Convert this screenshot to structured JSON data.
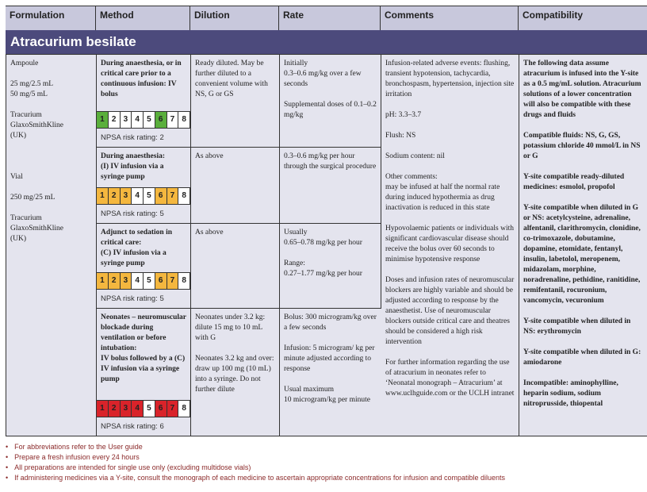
{
  "headers": [
    "Formulation",
    "Method",
    "Dilution",
    "Rate",
    "Comments",
    "Compatibility"
  ],
  "drug": "Atracurium besilate",
  "formulation": "Ampoule\n\n25 mg/2.5 mL\n50 mg/5 mL\n\nTracurium\nGlaxoSmithKline\n(UK)\n\n\n\nVial\n\n250 mg/25 mL\n\nTracurium\nGlaxoSmithKline\n(UK)",
  "colors": {
    "green": "#5aaf3c",
    "amber": "#f4b73f",
    "red": "#d9232a",
    "header": "#c8c8dc",
    "title_bar": "#4c4a7c",
    "body": "#e4e4ee",
    "footer_text": "#8b2a2a"
  },
  "methods": [
    {
      "method": "During anaesthesia, or in critical care prior to a continuous infusion: IV bolus",
      "dilution": "Ready diluted. May be further diluted to a convenient volume with NS, G or GS",
      "rate": "Initially\n0.3–0.6 mg/kg over a few seconds\n\nSupplemental doses of 0.1–0.2 mg/kg",
      "risk_color": "green",
      "risk_boxes": [
        1,
        6
      ],
      "npsa": "NPSA risk rating: 2"
    },
    {
      "method": "During anaesthesia:\n(I) IV infusion via a syringe pump",
      "dilution": "As above",
      "rate": "0.3–0.6 mg/kg per hour through the surgical procedure",
      "risk_color": "amber",
      "risk_boxes": [
        1,
        2,
        3,
        6,
        7
      ],
      "npsa": "NPSA risk rating: 5"
    },
    {
      "method": "Adjunct to sedation in critical care:\n(C) IV infusion via a syringe pump",
      "dilution": "As above",
      "rate": "Usually\n0.65–0.78 mg/kg per hour\n\nRange:\n0.27–1.77 mg/kg per hour",
      "risk_color": "amber",
      "risk_boxes": [
        1,
        2,
        3,
        6,
        7
      ],
      "npsa": "NPSA risk rating: 5"
    },
    {
      "method": "Neonates – neuromuscular blockade during ventilation or before intubation:\nIV bolus followed by a (C) IV infusion via a syringe pump",
      "dilution": "Neonates under 3.2 kg: dilute 15 mg to 10 mL with G\n\nNeonates 3.2 kg and over: draw up 100 mg (10 mL) into a syringe. Do not further dilute",
      "rate": "Bolus: 300 microgram/kg over a few seconds\n\nInfusion: 5 microgram/ kg per minute adjusted according to response\n\nUsual maximum\n10 microgram/kg per minute",
      "risk_color": "red",
      "risk_boxes": [
        1,
        2,
        3,
        4,
        6,
        7
      ],
      "npsa": "NPSA risk rating: 6"
    }
  ],
  "comments": "Infusion-related adverse events: flushing, transient hypotension, tachycardia, bronchospasm, hypertension, injection site irritation\n\npH: 3.3–3.7\n\nFlush: NS\n\nSodium content: nil\n\nOther comments:\nmay be infused at half the normal rate during induced hypothermia as drug inactivation is reduced in this state\n\nHypovolaemic patients or individuals with significant cardiovascular disease should receive the bolus over 60 seconds to minimise hypotensive response\n\nDoses and infusion rates of neuromuscular blockers are highly variable and should be adjusted according to response by the anaesthetist. Use of neuromuscular blockers outside critical care and theatres should be considered a high risk intervention\n\nFor further information regarding the use of atracurium in neonates refer to ‘Neonatal monograph – Atracurium’ at www.uclhguide.com or the UCLH intranet",
  "compatibility": "The following data assume atracurium is infused into the Y-site as a 0.5 mg/mL solution. Atracurium solutions of a lower concentration will also be compatible with these drugs and fluids\n\nCompatible fluids: NS, G, GS, potassium chloride 40 mmol/L in NS or G\n\nY-site compatible ready-diluted medicines: esmolol, propofol\n\nY-site compatible when diluted in G or NS: acetylcysteine, adrenaline, alfentanil, clarithromycin, clonidine, co-trimoxazole, dobutamine, dopamine, etomidate, fentanyl, insulin, labetolol, meropenem, midazolam, morphine, noradrenaline, pethidine, ranitidine, remifentanil, rocuronium, vancomycin, vecuronium\n\nY-site compatible when diluted in NS: erythromycin\n\nY-site compatible when diluted in G: amiodarone\n\nIncompatible: aminophylline, heparin sodium, sodium nitroprusside, thiopental",
  "footer": [
    "For abbreviations refer to the User guide",
    "Prepare a fresh infusion every 24 hours",
    "All preparations are intended for single use only (excluding multidose vials)",
    "If administering medicines via a Y-site, consult the monograph of each medicine to ascertain appropriate concentrations for infusion and compatible diluents"
  ]
}
